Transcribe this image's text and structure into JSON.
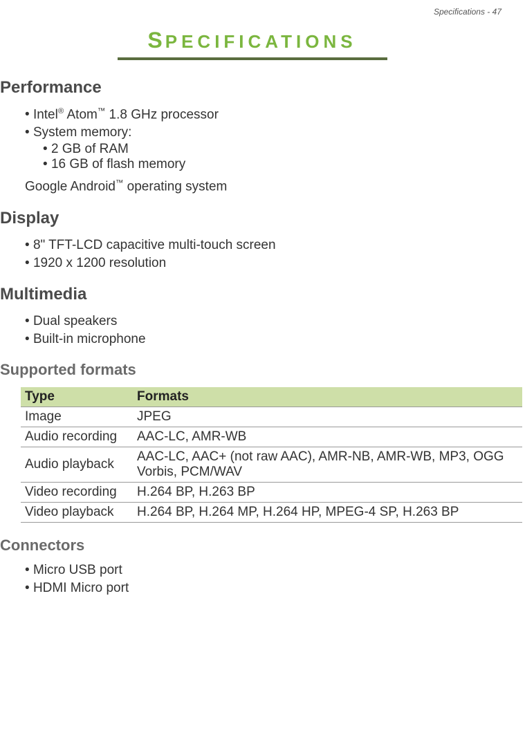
{
  "header": {
    "running_head": "Specifications - 47"
  },
  "title": {
    "first_letter": "S",
    "rest": "PECIFICATIONS"
  },
  "colors": {
    "accent_green": "#7bb63f",
    "bar_green": "#5a6d3f",
    "table_header_bg": "#cedfa8",
    "border_gray": "#999999",
    "heading_dark": "#4a4a4a",
    "heading_gray": "#6a6a6a",
    "body_text": "#333333",
    "background": "#ffffff"
  },
  "sections": {
    "performance": {
      "heading": "Performance",
      "item1_pre": "Intel",
      "item1_sup1": "®",
      "item1_mid": " Atom",
      "item1_sup2": "™",
      "item1_post": " 1.8 GHz processor",
      "item2": "System memory:",
      "sub1": "2 GB of RAM",
      "sub2": "16 GB of flash memory",
      "after_pre": "Google Android",
      "after_sup": "™",
      "after_post": " operating system"
    },
    "display": {
      "heading": "Display",
      "item1": "8\" TFT-LCD capacitive multi-touch screen",
      "item2": "1920 x 1200 resolution"
    },
    "multimedia": {
      "heading": "Multimedia",
      "item1": "Dual speakers",
      "item2": "Built-in microphone"
    },
    "supported_formats": {
      "heading": "Supported formats",
      "col_type": "Type",
      "col_formats": "Formats",
      "rows": [
        {
          "type": "Image",
          "formats": "JPEG"
        },
        {
          "type": "Audio recording",
          "formats": "AAC-LC, AMR-WB"
        },
        {
          "type": "Audio playback",
          "formats": "AAC-LC, AAC+ (not raw AAC), AMR-NB, AMR-WB, MP3, OGG Vorbis, PCM/WAV"
        },
        {
          "type": "Video recording",
          "formats": "H.264 BP, H.263 BP"
        },
        {
          "type": "Video playback",
          "formats": "H.264 BP, H.264 MP, H.264 HP, MPEG-4 SP, H.263 BP"
        }
      ]
    },
    "connectors": {
      "heading": "Connectors",
      "item1": "Micro USB port",
      "item2": "HDMI Micro port"
    }
  }
}
